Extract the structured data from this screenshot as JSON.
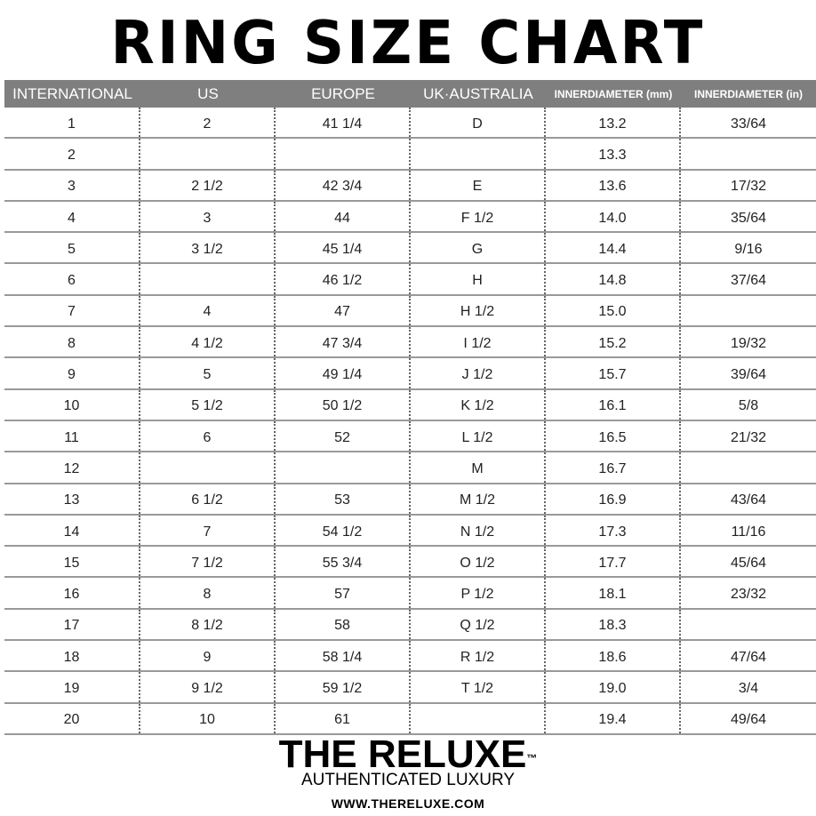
{
  "title": "RING SIZE CHART",
  "columns": [
    "INTERNATIONAL",
    "US",
    "EUROPE",
    "UK·AUSTRALIA",
    [
      "INNER",
      "DIAMETER (mm)"
    ],
    [
      "INNER",
      "DIAMETER (in)"
    ]
  ],
  "rows": [
    [
      "1",
      "2",
      "41 1/4",
      "D",
      "13.2",
      "33/64"
    ],
    [
      "2",
      "",
      "",
      "",
      "13.3",
      ""
    ],
    [
      "3",
      "2 1/2",
      "42 3/4",
      "E",
      "13.6",
      "17/32"
    ],
    [
      "4",
      "3",
      "44",
      "F 1/2",
      "14.0",
      "35/64"
    ],
    [
      "5",
      "3 1/2",
      "45 1/4",
      "G",
      "14.4",
      "9/16"
    ],
    [
      "6",
      "",
      "46 1/2",
      "H",
      "14.8",
      "37/64"
    ],
    [
      "7",
      "4",
      "47",
      "H 1/2",
      "15.0",
      ""
    ],
    [
      "8",
      "4 1/2",
      "47 3/4",
      "I 1/2",
      "15.2",
      "19/32"
    ],
    [
      "9",
      "5",
      "49 1/4",
      "J 1/2",
      "15.7",
      "39/64"
    ],
    [
      "10",
      "5 1/2",
      "50 1/2",
      "K 1/2",
      "16.1",
      "5/8"
    ],
    [
      "11",
      "6",
      "52",
      "L 1/2",
      "16.5",
      "21/32"
    ],
    [
      "12",
      "",
      "",
      "M",
      "16.7",
      ""
    ],
    [
      "13",
      "6 1/2",
      "53",
      "M 1/2",
      "16.9",
      "43/64"
    ],
    [
      "14",
      "7",
      "54 1/2",
      "N 1/2",
      "17.3",
      "11/16"
    ],
    [
      "15",
      "7 1/2",
      "55 3/4",
      "O 1/2",
      "17.7",
      "45/64"
    ],
    [
      "16",
      "8",
      "57",
      "P 1/2",
      "18.1",
      "23/32"
    ],
    [
      "17",
      "8 1/2",
      "58",
      "Q 1/2",
      "18.3",
      ""
    ],
    [
      "18",
      "9",
      "58 1/4",
      "R 1/2",
      "18.6",
      "47/64"
    ],
    [
      "19",
      "9 1/2",
      "59 1/2",
      "T 1/2",
      "19.0",
      "3/4"
    ],
    [
      "20",
      "10",
      "61",
      "",
      "19.4",
      "49/64"
    ]
  ],
  "brand": {
    "logo": "THE RELUXE",
    "tm": "™",
    "tagline": "AUTHENTICATED LUXURY",
    "url": "WWW.THERELUXE.COM"
  },
  "colors": {
    "header_bg": "#7f7f7f",
    "header_text": "#ffffff"
  }
}
